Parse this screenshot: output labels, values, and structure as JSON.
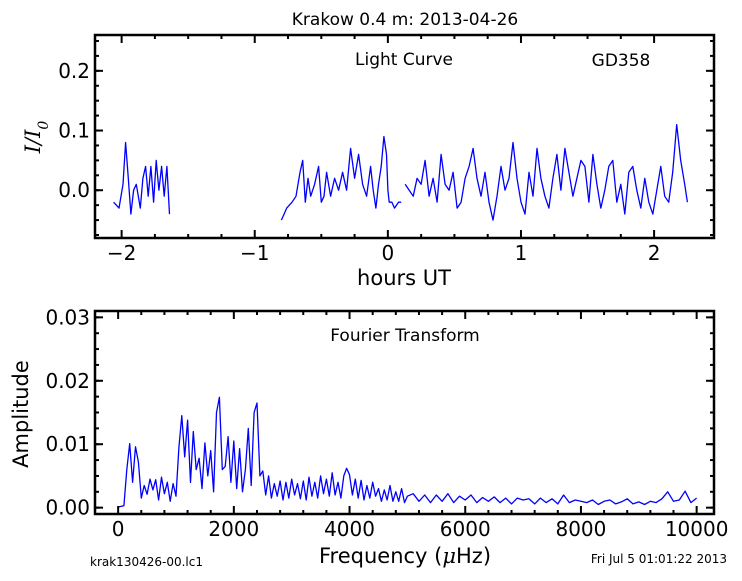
{
  "figure": {
    "title": "Krakow 0.4 m:  2013-04-26",
    "footer_left": "krak130426-00.lc1",
    "footer_right": "Fri Jul  5 01:01:22 2013"
  },
  "colors": {
    "line": "#0000ff",
    "axes": "#000000",
    "background": "#ffffff"
  },
  "chart_data": [
    {
      "id": "light_curve",
      "type": "line",
      "annotations": [
        "Light Curve",
        "GD358"
      ],
      "xlabel": "hours UT",
      "ylabel": {
        "var": "I",
        "sep": "/",
        "sub": "0"
      },
      "xlim": [
        -2.2,
        2.45
      ],
      "ylim": [
        -0.08,
        0.26
      ],
      "xticks": [
        -2,
        -1,
        0,
        1,
        2
      ],
      "xtick_labels": [
        "−2",
        "−1",
        "0",
        "1",
        "2"
      ],
      "yticks": [
        0.0,
        0.1,
        0.2
      ],
      "ytick_labels": [
        "0.0",
        "0.1",
        "0.2"
      ],
      "grid": false,
      "series": [
        {
          "x": [
            -2.06,
            -2.02,
            -1.99,
            -1.97,
            -1.95,
            -1.93,
            -1.91,
            -1.89,
            -1.86,
            -1.84,
            -1.82,
            -1.8,
            -1.78,
            -1.76,
            -1.74,
            -1.72,
            -1.7,
            -1.68,
            -1.66,
            -1.64
          ],
          "y": [
            -0.02,
            -0.03,
            0.01,
            0.08,
            0.02,
            -0.04,
            0.0,
            0.01,
            -0.03,
            0.02,
            0.04,
            -0.01,
            0.04,
            -0.02,
            0.05,
            0.0,
            0.04,
            -0.01,
            0.04,
            -0.04
          ]
        },
        {
          "x": [
            -0.8,
            -0.76,
            -0.72,
            -0.69,
            -0.66,
            -0.64,
            -0.62,
            -0.6,
            -0.58,
            -0.55,
            -0.52,
            -0.5,
            -0.48,
            -0.46,
            -0.43,
            -0.4,
            -0.37,
            -0.34,
            -0.31,
            -0.28,
            -0.25,
            -0.22,
            -0.19,
            -0.16,
            -0.13,
            -0.11,
            -0.09,
            -0.07,
            -0.05,
            -0.03,
            -0.01,
            0.0,
            0.01,
            0.03,
            0.05,
            0.08,
            0.1
          ],
          "y": [
            -0.05,
            -0.03,
            -0.02,
            -0.01,
            0.03,
            0.05,
            -0.02,
            0.02,
            -0.01,
            0.01,
            0.04,
            -0.02,
            -0.01,
            0.03,
            -0.01,
            0.02,
            0.0,
            0.03,
            0.0,
            0.07,
            0.02,
            0.06,
            0.01,
            -0.01,
            0.04,
            0.0,
            -0.03,
            0.01,
            0.04,
            0.09,
            0.06,
            0.0,
            -0.02,
            -0.02,
            -0.03,
            -0.02,
            -0.02
          ]
        },
        {
          "x": [
            0.13,
            0.16,
            0.19,
            0.22,
            0.25,
            0.28,
            0.31,
            0.34,
            0.37,
            0.4,
            0.43,
            0.46,
            0.49,
            0.52,
            0.55,
            0.58,
            0.61,
            0.64,
            0.67,
            0.7,
            0.73,
            0.76,
            0.79,
            0.82,
            0.85,
            0.88,
            0.91,
            0.94,
            0.97,
            1.0,
            1.03,
            1.06,
            1.09,
            1.12,
            1.15,
            1.18,
            1.21,
            1.24,
            1.27,
            1.3,
            1.33,
            1.36,
            1.39,
            1.42,
            1.45,
            1.48,
            1.51,
            1.54,
            1.57,
            1.6,
            1.63,
            1.66,
            1.69,
            1.72,
            1.75,
            1.78,
            1.81,
            1.84,
            1.87,
            1.9,
            1.93,
            1.96,
            1.99,
            2.02,
            2.05,
            2.08,
            2.11,
            2.14,
            2.17,
            2.2,
            2.23,
            2.25
          ],
          "y": [
            0.01,
            0.0,
            -0.01,
            0.02,
            0.01,
            0.05,
            -0.01,
            0.02,
            -0.02,
            0.06,
            0.01,
            0.0,
            0.03,
            -0.03,
            -0.02,
            0.02,
            0.04,
            0.07,
            0.02,
            -0.01,
            0.03,
            -0.02,
            -0.05,
            -0.01,
            0.04,
            0.0,
            0.02,
            0.08,
            0.02,
            -0.02,
            -0.04,
            0.03,
            -0.01,
            0.07,
            0.02,
            -0.01,
            -0.03,
            0.02,
            0.06,
            0.0,
            0.07,
            0.03,
            -0.01,
            0.02,
            0.05,
            0.04,
            -0.02,
            0.06,
            0.01,
            -0.03,
            0.0,
            0.04,
            0.05,
            -0.02,
            0.01,
            -0.04,
            0.03,
            0.04,
            0.0,
            -0.03,
            0.02,
            -0.02,
            -0.04,
            0.0,
            0.04,
            -0.01,
            -0.02,
            0.03,
            0.11,
            0.05,
            0.01,
            -0.02
          ]
        }
      ]
    },
    {
      "id": "fourier_transform",
      "type": "line",
      "annotations": [
        "Fourier Transform"
      ],
      "xlabel": {
        "pre": "Frequency (",
        "mu": "μ",
        "post": "Hz)"
      },
      "ylabel": "Amplitude",
      "xlim": [
        -400,
        10300
      ],
      "ylim": [
        -0.001,
        0.031
      ],
      "xticks": [
        0,
        2000,
        4000,
        6000,
        8000,
        10000
      ],
      "xtick_labels": [
        "0",
        "2000",
        "4000",
        "6000",
        "8000",
        "10000"
      ],
      "yticks": [
        0.0,
        0.01,
        0.02,
        0.03
      ],
      "ytick_labels": [
        "0.00",
        "0.01",
        "0.02",
        "0.03"
      ],
      "grid": false,
      "series": [
        {
          "x": [
            0,
            100,
            150,
            200,
            250,
            300,
            350,
            400,
            450,
            500,
            550,
            600,
            650,
            700,
            750,
            800,
            850,
            900,
            950,
            1000,
            1050,
            1100,
            1150,
            1200,
            1250,
            1300,
            1350,
            1400,
            1450,
            1500,
            1550,
            1600,
            1650,
            1700,
            1750,
            1800,
            1850,
            1900,
            1950,
            2000,
            2050,
            2100,
            2150,
            2200,
            2250,
            2300,
            2350,
            2400,
            2450,
            2500,
            2550,
            2600,
            2650,
            2700,
            2750,
            2800,
            2850,
            2900,
            2950,
            3000,
            3050,
            3100,
            3150,
            3200,
            3250,
            3300,
            3350,
            3400,
            3450,
            3500,
            3550,
            3600,
            3650,
            3700,
            3750,
            3800,
            3850,
            3900,
            3950,
            4000,
            4050,
            4100,
            4150,
            4200,
            4250,
            4300,
            4350,
            4400,
            4450,
            4500,
            4550,
            4600,
            4650,
            4700,
            4750,
            4800,
            4850,
            4900,
            4950,
            5000,
            5100,
            5200,
            5300,
            5400,
            5500,
            5600,
            5700,
            5800,
            5900,
            6000,
            6100,
            6200,
            6300,
            6400,
            6500,
            6600,
            6700,
            6800,
            6900,
            7000,
            7100,
            7200,
            7300,
            7400,
            7500,
            7600,
            7700,
            7800,
            7900,
            8000,
            8100,
            8200,
            8300,
            8400,
            8500,
            8600,
            8700,
            8800,
            8900,
            9000,
            9100,
            9200,
            9300,
            9400,
            9500,
            9600,
            9700,
            9800,
            9900,
            10000
          ],
          "y": [
            0.0001,
            0.0003,
            0.006,
            0.0101,
            0.004,
            0.0096,
            0.0072,
            0.0015,
            0.0035,
            0.0021,
            0.0045,
            0.0028,
            0.0044,
            0.0012,
            0.0048,
            0.0022,
            0.004,
            0.001,
            0.0038,
            0.0018,
            0.0095,
            0.0145,
            0.008,
            0.0138,
            0.004,
            0.012,
            0.006,
            0.0078,
            0.003,
            0.0102,
            0.005,
            0.009,
            0.0025,
            0.015,
            0.0174,
            0.006,
            0.0065,
            0.0112,
            0.004,
            0.0105,
            0.003,
            0.0093,
            0.0025,
            0.006,
            0.0125,
            0.0035,
            0.015,
            0.0165,
            0.005,
            0.0058,
            0.002,
            0.005,
            0.0015,
            0.0038,
            0.0018,
            0.0042,
            0.0012,
            0.004,
            0.0015,
            0.0045,
            0.002,
            0.0038,
            0.0014,
            0.0042,
            0.0012,
            0.0048,
            0.0018,
            0.004,
            0.0015,
            0.005,
            0.0022,
            0.0045,
            0.0018,
            0.0055,
            0.002,
            0.004,
            0.0015,
            0.005,
            0.0062,
            0.0052,
            0.002,
            0.0045,
            0.0015,
            0.0043,
            0.0012,
            0.0035,
            0.0015,
            0.004,
            0.0018,
            0.003,
            0.001,
            0.0028,
            0.0012,
            0.0035,
            0.001,
            0.0025,
            0.001,
            0.003,
            0.0008,
            0.0018,
            0.0022,
            0.001,
            0.002,
            0.0008,
            0.002,
            0.001,
            0.0022,
            0.0008,
            0.0018,
            0.0012,
            0.002,
            0.0008,
            0.0016,
            0.001,
            0.0017,
            0.0008,
            0.0015,
            0.0006,
            0.0015,
            0.0012,
            0.0014,
            0.0006,
            0.0015,
            0.0008,
            0.0014,
            0.0006,
            0.002,
            0.0008,
            0.0012,
            0.001,
            0.0008,
            0.0012,
            0.0005,
            0.001,
            0.0012,
            0.0006,
            0.0009,
            0.0014,
            0.0006,
            0.0009,
            0.0005,
            0.001,
            0.0008,
            0.0014,
            0.0025,
            0.001,
            0.0012,
            0.0026,
            0.0008,
            0.0015
          ]
        }
      ]
    }
  ]
}
